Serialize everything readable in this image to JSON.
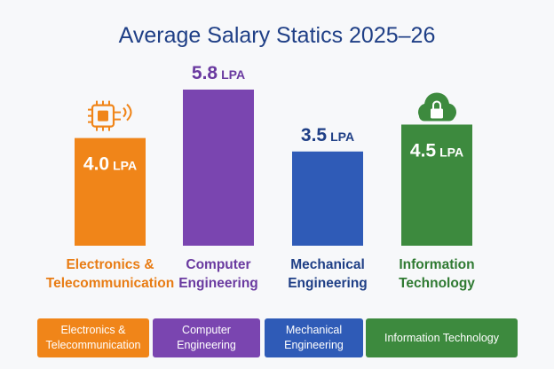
{
  "chart_data": {
    "type": "bar",
    "title": "Average Salary Statics 2025–26",
    "categories": [
      "Electronics & Telecommunication",
      "Computer Engineering",
      "Mechanical Engineering",
      "Information Technology"
    ],
    "category_lines": [
      [
        "Electronics &",
        "Telecommunication"
      ],
      [
        "Computer",
        "Engineering"
      ],
      [
        "Mechanical",
        "Engineering"
      ],
      [
        "Information",
        "Technology"
      ]
    ],
    "values": [
      4.0,
      5.8,
      3.5,
      4.5
    ],
    "value_labels": [
      "4.0",
      "5.8",
      "3.5",
      "4.5"
    ],
    "unit": "LPA",
    "colors": [
      "#f08519",
      "#7a45b0",
      "#2f5bb7",
      "#3d8a3e"
    ],
    "label_colors": [
      "#e87c14",
      "#6a3aa0",
      "#1f3f86",
      "#2f7a32"
    ],
    "value_label_position": [
      "inside",
      "above",
      "above",
      "inside"
    ],
    "icons": [
      "circuit-chip-icon",
      "",
      "",
      "cloud-lock-icon"
    ],
    "xlabel": "",
    "ylabel": "",
    "ylim": [
      0,
      5.8
    ],
    "grid": false,
    "legend": {
      "items": [
        {
          "text": "Electronics & Telecommunication",
          "lines": [
            "Electronics &",
            "Telecommunication"
          ],
          "color": "#f08519"
        },
        {
          "text": "Computer Engineering",
          "lines": [
            "Computer",
            "Engineering"
          ],
          "color": "#7a45b0"
        },
        {
          "text": "Mechanical Engineering",
          "lines": [
            "Mechanical",
            "Engineering"
          ],
          "color": "#2f5bb7"
        },
        {
          "text": "Information Technology",
          "lines": [
            "Information Technology"
          ],
          "color": "#3d8a3e"
        }
      ],
      "position": "bottom"
    }
  }
}
